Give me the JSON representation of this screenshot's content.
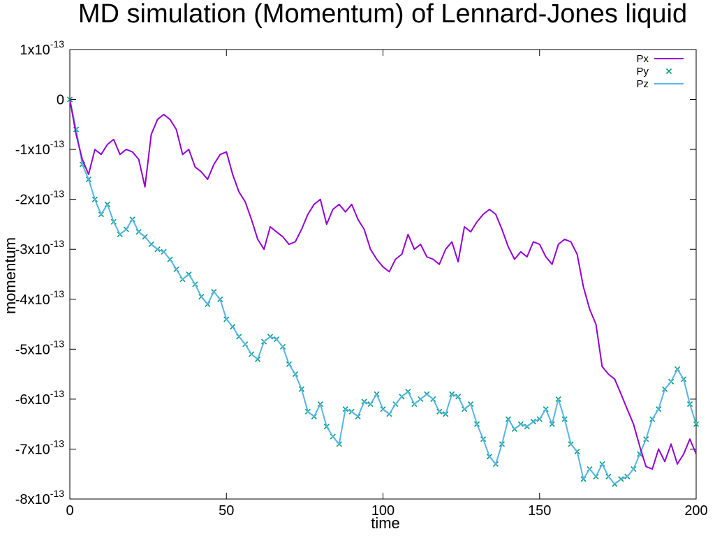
{
  "chart_data": {
    "type": "line",
    "title": "MD simulation (Momentum) of Lennard-Jones liquid",
    "xlabel": "time",
    "ylabel": "momentum",
    "xlim": [
      0,
      200
    ],
    "ylim": [
      -8e-13,
      1e-13
    ],
    "x_ticks": [
      {
        "value": 0,
        "label": "0"
      },
      {
        "value": 50,
        "label": "50"
      },
      {
        "value": 100,
        "label": "100"
      },
      {
        "value": 150,
        "label": "150"
      },
      {
        "value": 200,
        "label": "200"
      }
    ],
    "y_ticks": [
      {
        "value": 1e-13,
        "mantissa": "1x10",
        "exponent": "-13"
      },
      {
        "value": 0,
        "mantissa": "0",
        "exponent": ""
      },
      {
        "value": -1e-13,
        "mantissa": "-1x10",
        "exponent": "-13"
      },
      {
        "value": -2e-13,
        "mantissa": "-2x10",
        "exponent": "-13"
      },
      {
        "value": -3e-13,
        "mantissa": "-3x10",
        "exponent": "-13"
      },
      {
        "value": -4e-13,
        "mantissa": "-4x10",
        "exponent": "-13"
      },
      {
        "value": -5e-13,
        "mantissa": "-5x10",
        "exponent": "-13"
      },
      {
        "value": -6e-13,
        "mantissa": "-6x10",
        "exponent": "-13"
      },
      {
        "value": -7e-13,
        "mantissa": "-7x10",
        "exponent": "-13"
      },
      {
        "value": -8e-13,
        "mantissa": "-8x10",
        "exponent": "-13"
      }
    ],
    "grid": false,
    "legend_position": "top-right",
    "x": [
      0,
      2,
      4,
      6,
      8,
      10,
      12,
      14,
      16,
      18,
      20,
      22,
      24,
      26,
      28,
      30,
      32,
      34,
      36,
      38,
      40,
      42,
      44,
      46,
      48,
      50,
      52,
      54,
      56,
      58,
      60,
      62,
      64,
      66,
      68,
      70,
      72,
      74,
      76,
      78,
      80,
      82,
      84,
      86,
      88,
      90,
      92,
      94,
      96,
      98,
      100,
      102,
      104,
      106,
      108,
      110,
      112,
      114,
      116,
      118,
      120,
      122,
      124,
      126,
      128,
      130,
      132,
      134,
      136,
      138,
      140,
      142,
      144,
      146,
      148,
      150,
      152,
      154,
      156,
      158,
      160,
      162,
      164,
      166,
      168,
      170,
      172,
      174,
      176,
      178,
      180,
      182,
      184,
      186,
      188,
      190,
      192,
      194,
      196,
      198,
      200
    ],
    "series": [
      {
        "name": "Px",
        "style": "line",
        "color": "#9400d3",
        "values": [
          0,
          -0.7,
          -1.2,
          -1.5,
          -1.0,
          -1.1,
          -0.9,
          -0.8,
          -1.1,
          -1.0,
          -1.05,
          -1.2,
          -1.75,
          -0.7,
          -0.4,
          -0.3,
          -0.4,
          -0.6,
          -1.1,
          -1.0,
          -1.35,
          -1.45,
          -1.6,
          -1.3,
          -1.1,
          -1.05,
          -1.5,
          -1.85,
          -2.05,
          -2.4,
          -2.8,
          -3.0,
          -2.55,
          -2.65,
          -2.75,
          -2.9,
          -2.85,
          -2.6,
          -2.3,
          -2.1,
          -2.0,
          -2.5,
          -2.2,
          -2.1,
          -2.25,
          -2.1,
          -2.4,
          -2.6,
          -3.0,
          -3.2,
          -3.35,
          -3.45,
          -3.2,
          -3.1,
          -2.7,
          -3.0,
          -2.9,
          -3.15,
          -3.2,
          -3.3,
          -3.0,
          -2.85,
          -3.25,
          -2.55,
          -2.65,
          -2.45,
          -2.3,
          -2.2,
          -2.3,
          -2.6,
          -2.95,
          -3.2,
          -3.05,
          -3.15,
          -2.85,
          -2.9,
          -3.15,
          -3.3,
          -2.9,
          -2.8,
          -2.85,
          -3.1,
          -3.75,
          -4.2,
          -4.5,
          -5.35,
          -5.5,
          -5.6,
          -5.9,
          -6.2,
          -6.5,
          -6.95,
          -7.35,
          -7.4,
          -7.0,
          -7.25,
          -6.9,
          -7.3,
          -7.1,
          -6.8,
          -7.1
        ]
      },
      {
        "name": "Py",
        "style": "points",
        "color": "#009e73",
        "values": [
          0,
          -0.6,
          -1.3,
          -1.6,
          -2.0,
          -2.3,
          -2.1,
          -2.45,
          -2.7,
          -2.6,
          -2.4,
          -2.65,
          -2.75,
          -2.9,
          -3.0,
          -3.05,
          -3.2,
          -3.4,
          -3.6,
          -3.5,
          -3.7,
          -3.95,
          -4.1,
          -3.85,
          -4.0,
          -4.4,
          -4.55,
          -4.75,
          -4.9,
          -5.1,
          -5.2,
          -4.85,
          -4.75,
          -4.8,
          -4.95,
          -5.3,
          -5.5,
          -5.8,
          -6.25,
          -6.35,
          -6.1,
          -6.55,
          -6.75,
          -6.9,
          -6.2,
          -6.25,
          -6.35,
          -6.05,
          -6.1,
          -5.9,
          -6.2,
          -6.3,
          -6.1,
          -5.95,
          -5.85,
          -6.1,
          -6.0,
          -5.9,
          -6.0,
          -6.25,
          -6.3,
          -5.9,
          -5.95,
          -6.2,
          -6.1,
          -6.5,
          -6.8,
          -7.15,
          -7.3,
          -6.9,
          -6.4,
          -6.6,
          -6.5,
          -6.55,
          -6.45,
          -6.4,
          -6.2,
          -6.5,
          -6.0,
          -6.4,
          -6.9,
          -7.05,
          -7.6,
          -7.4,
          -7.55,
          -7.3,
          -7.55,
          -7.7,
          -7.6,
          -7.55,
          -7.4,
          -7.1,
          -6.8,
          -6.4,
          -6.2,
          -5.8,
          -5.65,
          -5.4,
          -5.6,
          -6.1,
          -6.5
        ]
      },
      {
        "name": "Pz",
        "style": "line",
        "color": "#56b4e9",
        "values": [
          0,
          -0.6,
          -1.3,
          -1.6,
          -2.0,
          -2.3,
          -2.1,
          -2.45,
          -2.7,
          -2.6,
          -2.4,
          -2.65,
          -2.75,
          -2.9,
          -3.0,
          -3.05,
          -3.2,
          -3.4,
          -3.6,
          -3.5,
          -3.7,
          -3.95,
          -4.1,
          -3.85,
          -4.0,
          -4.4,
          -4.55,
          -4.75,
          -4.9,
          -5.1,
          -5.2,
          -4.85,
          -4.75,
          -4.8,
          -4.95,
          -5.3,
          -5.5,
          -5.8,
          -6.25,
          -6.35,
          -6.1,
          -6.55,
          -6.75,
          -6.9,
          -6.2,
          -6.25,
          -6.35,
          -6.05,
          -6.1,
          -5.9,
          -6.2,
          -6.3,
          -6.1,
          -5.95,
          -5.85,
          -6.1,
          -6.0,
          -5.9,
          -6.0,
          -6.25,
          -6.3,
          -5.9,
          -5.95,
          -6.2,
          -6.1,
          -6.5,
          -6.8,
          -7.15,
          -7.3,
          -6.9,
          -6.4,
          -6.6,
          -6.5,
          -6.55,
          -6.45,
          -6.4,
          -6.2,
          -6.5,
          -6.0,
          -6.4,
          -6.9,
          -7.05,
          -7.6,
          -7.4,
          -7.55,
          -7.3,
          -7.55,
          -7.7,
          -7.6,
          -7.55,
          -7.4,
          -7.1,
          -6.8,
          -6.4,
          -6.2,
          -5.8,
          -5.65,
          -5.4,
          -5.6,
          -6.1,
          -6.5
        ]
      }
    ],
    "values_unit_scale": "1e-13"
  }
}
